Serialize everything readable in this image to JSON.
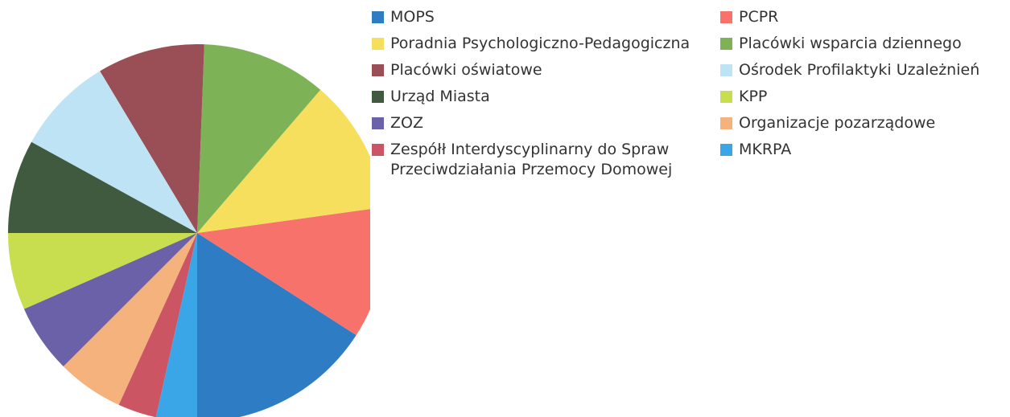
{
  "chart_data": {
    "type": "pie",
    "series": [
      {
        "name": "MOPS",
        "color": "#2e7cc4",
        "value": 15.9
      },
      {
        "name": "PCPR",
        "color": "#f7726a",
        "value": 11.3
      },
      {
        "name": "Poradnia Psychologiczno-Pedagogiczna",
        "color": "#f5df5c",
        "value": 11.5
      },
      {
        "name": "Placówki wsparcia dziennego",
        "color": "#7db356",
        "value": 10.7
      },
      {
        "name": "Placówki oświatowe",
        "color": "#9a4f56",
        "value": 9.2
      },
      {
        "name": "Ośrodek Profilaktyki Uzależnień",
        "color": "#bde3f5",
        "value": 8.4
      },
      {
        "name": "Urząd Miasta",
        "color": "#3f5a3f",
        "value": 8.0
      },
      {
        "name": "KPP",
        "color": "#c8de4e",
        "value": 6.6
      },
      {
        "name": "ZOZ",
        "color": "#6a61a8",
        "value": 5.9
      },
      {
        "name": "Organizacje pozarządowe",
        "color": "#f6b27c",
        "value": 5.7
      },
      {
        "name": "Zespółł Interdyscyplinarny do Spraw Przeciwdziałania Przemocy Domowej",
        "color": "#cc5563",
        "value": 3.3
      },
      {
        "name": "MKRPA",
        "color": "#3aa6e8",
        "value": 3.5
      }
    ],
    "legend": "right"
  }
}
